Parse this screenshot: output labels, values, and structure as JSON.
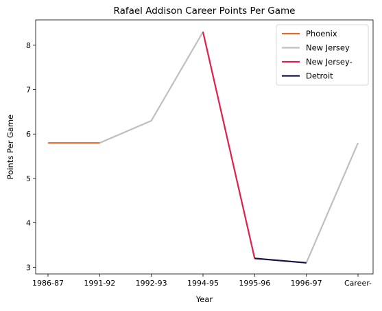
{
  "chart_data": {
    "type": "line",
    "title": "Rafael Addison Career Points Per Game",
    "xlabel": "Year",
    "ylabel": "Points Per Game",
    "categories": [
      "1986-87",
      "1991-92",
      "1992-93",
      "1994-95",
      "1995-96",
      "1996-97",
      "Career-"
    ],
    "yticks": [
      3,
      4,
      5,
      6,
      7,
      8
    ],
    "ylim": [
      2.85,
      8.57
    ],
    "grid": false,
    "legend_position": "top-right",
    "series": [
      {
        "name": "Phoenix",
        "color": "#e0692b",
        "points": [
          [
            0,
            5.8
          ],
          [
            1,
            5.8
          ]
        ]
      },
      {
        "name": "New Jersey",
        "color": "#bfbfbf",
        "points": [
          [
            1,
            5.8
          ],
          [
            2,
            6.3
          ],
          [
            3,
            8.3
          ],
          [
            4,
            3.2
          ],
          [
            5,
            3.1
          ],
          [
            6,
            5.8
          ]
        ]
      },
      {
        "name": "New Jersey-",
        "color": "#e0224f",
        "points": [
          [
            3,
            8.3
          ],
          [
            4,
            3.2
          ]
        ]
      },
      {
        "name": "Detroit",
        "color": "#1c1045",
        "points": [
          [
            4,
            3.2
          ],
          [
            5,
            3.1
          ]
        ]
      }
    ],
    "draw_order": [
      "New Jersey",
      "Phoenix",
      "New Jersey-",
      "Detroit"
    ]
  }
}
